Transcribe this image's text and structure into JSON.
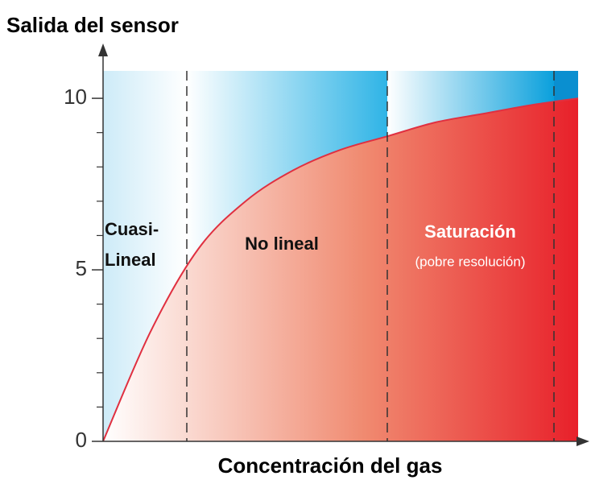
{
  "chart_data": {
    "type": "area",
    "ylabel": "Salida del sensor",
    "xlabel": "Concentración del gas",
    "categories": [
      null,
      null,
      null,
      null,
      null,
      null,
      null,
      null,
      null,
      null,
      null
    ],
    "values": [
      0,
      3.2,
      5.6,
      7.0,
      7.9,
      8.5,
      8.9,
      9.3,
      9.55,
      9.8,
      10.0
    ],
    "color": "#e8202a",
    "line_color": "#e03040",
    "ylim": [
      0,
      10.8
    ],
    "yticks": [
      0,
      5,
      10
    ],
    "yminor": [
      1,
      2,
      3,
      4,
      6,
      7,
      8,
      9
    ],
    "regions": [
      {
        "label": [
          "Cuasi-",
          "Lineal"
        ]
      },
      {
        "label": [
          "No lineal"
        ]
      },
      {
        "label": [
          "Saturación",
          "(pobre resolución)"
        ]
      }
    ]
  }
}
